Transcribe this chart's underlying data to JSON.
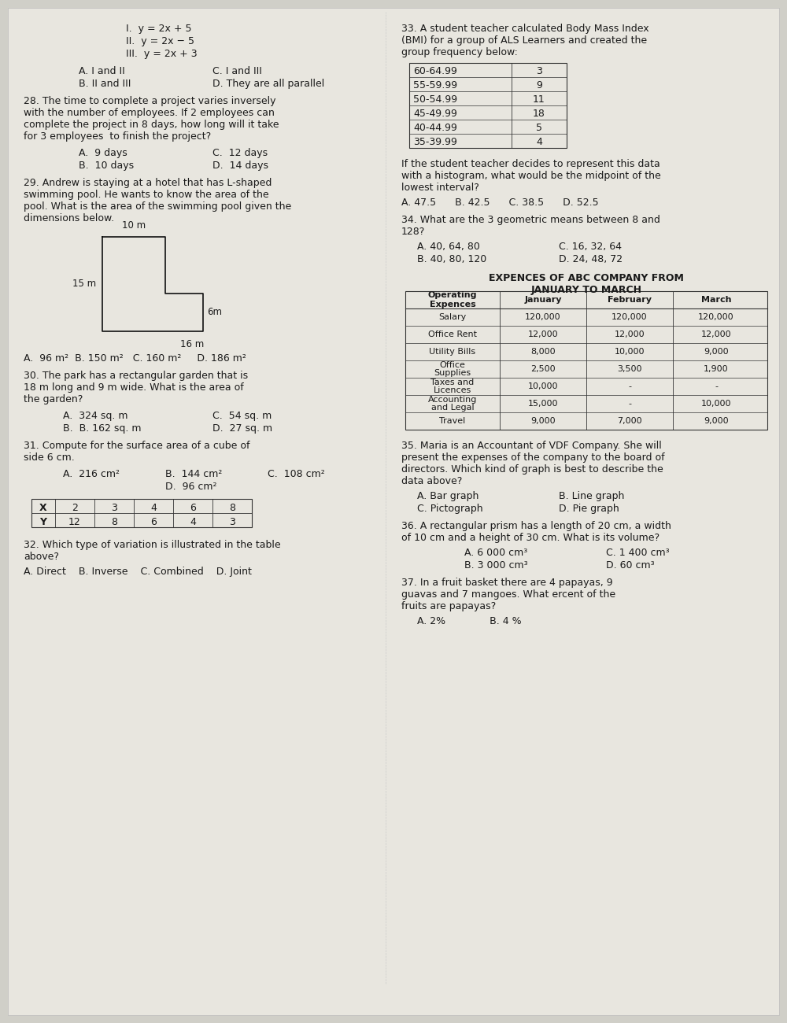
{
  "bg_color": "#d0cfc8",
  "paper_color": "#e8e6df",
  "text_color": "#1a1a1a",
  "left_col": {
    "q27_lines": [
      "I.  y = 2x + 5",
      "II.  y = 2x − 5",
      "III.  y = 2x + 3"
    ],
    "q27_choices": [
      [
        "A. I and II",
        "C. I and III"
      ],
      [
        "B. II and III",
        "D. They are all parallel"
      ]
    ],
    "q28_text": "28. The time to complete a project varies inversely\nwith the number of employees. If 2 employees can\ncomplete the project in 8 days, how long will it take\nfor 3 employees  to finish the project?",
    "q28_choices": [
      [
        "A.  9 days",
        "C.  12 days"
      ],
      [
        "B.  10 days",
        "D.  14 days"
      ]
    ],
    "q29_text": "29. Andrew is staying at a hotel that has L-shaped\nswimming pool. He wants to know the area of the\npool. What is the area of the swimming pool given the\ndimensions below.",
    "q29_choices": "A.  96 m²  B. 150 m²   C. 160 m²     D. 186 m²",
    "q30_text": "30. The park has a rectangular garden that is\n18 m long and 9 m wide. What is the area of\nthe garden?",
    "q30_choices": [
      [
        "A.  324 sq. m",
        "C.  54 sq. m"
      ],
      [
        "B.  B. 162 sq. m",
        "D.  27 sq. m"
      ]
    ],
    "q31_text": "31. Compute for the surface area of a cube of\nside 6 cm.",
    "q31_choices_row1": [
      "A.  216 cm²",
      "B.  144 cm²",
      "C.  108 cm²"
    ],
    "q31_choices_row2": "D.  96 cm²",
    "xy_table": {
      "headers": [
        "X",
        "2",
        "3",
        "4",
        "6",
        "8"
      ],
      "row2": [
        "Y",
        "12",
        "8",
        "6",
        "4",
        "3"
      ]
    },
    "q32_text": "32. Which type of variation is illustrated in the table\nabove?",
    "q32_choices": "A. Direct    B. Inverse    C. Combined    D. Joint"
  },
  "right_col": {
    "q33_text": "33. A student teacher calculated Body Mass Index\n(BMI) for a group of ALS Learners and created the\ngroup frequency below:",
    "q33_table": {
      "intervals": [
        "60-64.99",
        "55-59.99",
        "50-54.99",
        "45-49.99",
        "40-44.99",
        "35-39.99"
      ],
      "frequencies": [
        "3",
        "9",
        "11",
        "18",
        "5",
        "4"
      ]
    },
    "q33_after_text": "If the student teacher decides to represent this data\nwith a histogram, what would be the midpoint of the\nlowest interval?",
    "q33_choices": "A. 47.5      B. 42.5      C. 38.5      D. 52.5",
    "q34_text": "34. What are the 3 geometric means between 8 and\n128?",
    "q34_choices": [
      [
        "A. 40, 64, 80",
        "C. 16, 32, 64"
      ],
      [
        "B. 40, 80, 120",
        "D. 24, 48, 72"
      ]
    ],
    "expense_title1": "EXPENCES OF ABC COMPANY FROM",
    "expense_title2": "JANUARY TO MARCH",
    "expense_table": {
      "headers": [
        "Operating\nExpences",
        "January",
        "February",
        "March"
      ],
      "rows": [
        [
          "Salary",
          "120,000",
          "120,000",
          "120,000"
        ],
        [
          "Office Rent",
          "12,000",
          "12,000",
          "12,000"
        ],
        [
          "Utility Bills",
          "8,000",
          "10,000",
          "9,000"
        ],
        [
          "Office\nSupplies",
          "2,500",
          "3,500",
          "1,900"
        ],
        [
          "Taxes and\nLicences",
          "10,000",
          "-",
          "-"
        ],
        [
          "Accounting\nand Legal",
          "15,000",
          "-",
          "10,000"
        ],
        [
          "Travel",
          "9,000",
          "7,000",
          "9,000"
        ]
      ]
    },
    "q35_text": "35. Maria is an Accountant of VDF Company. She will\npresent the expenses of the company to the board of\ndirectors. Which kind of graph is best to describe the\ndata above?",
    "q35_choices": [
      [
        "A. Bar graph",
        "B. Line graph"
      ],
      [
        "C. Pictograph",
        "D. Pie graph"
      ]
    ],
    "q36_text": "36. A rectangular prism has a length of 20 cm, a width\nof 10 cm and a height of 30 cm. What is its volume?",
    "q36_choices": [
      [
        "A. 6 000 cm³",
        "C. 1 400 cm³"
      ],
      [
        "B. 3 000 cm³",
        "D. 60 cm³"
      ]
    ],
    "q37_text": "37. In a fruit basket there are 4 papayas, 9\nguavas and 7 mangoes. What ercent of the\nfruits are papayas?",
    "q37_choices": "A. 2%              B. 4 %"
  }
}
